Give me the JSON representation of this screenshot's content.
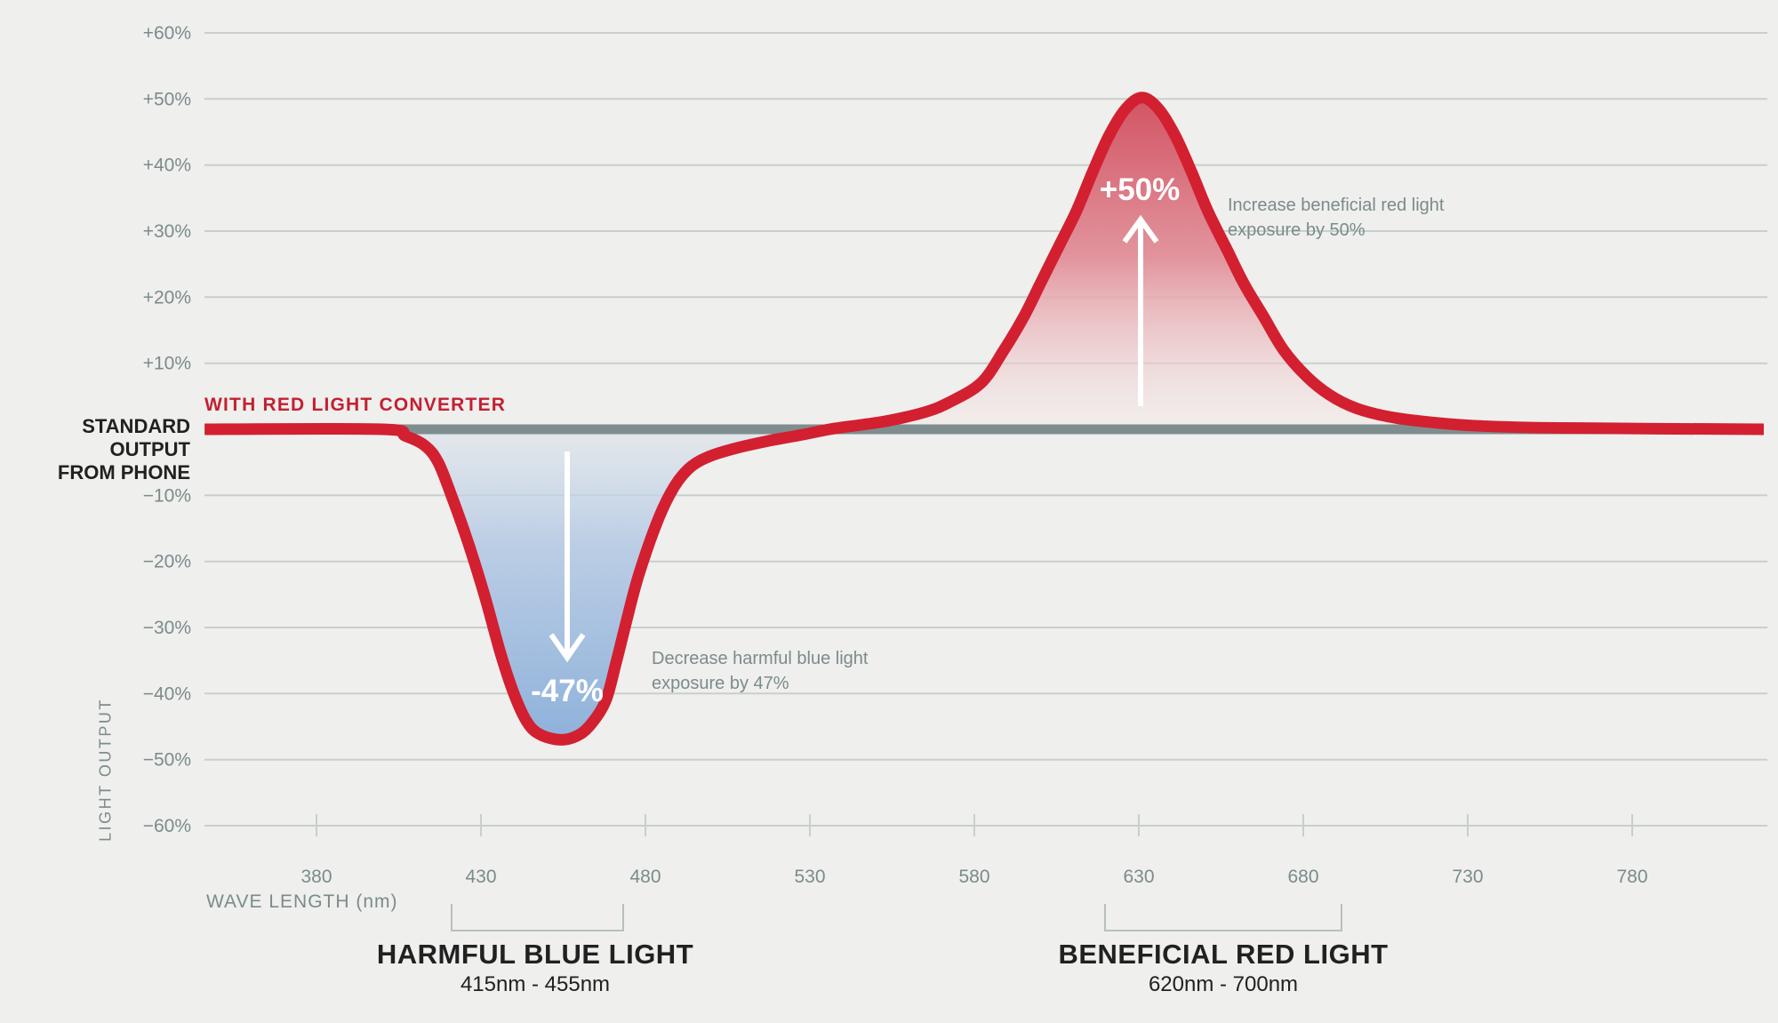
{
  "chart_data": {
    "type": "line",
    "title": "",
    "xlabel": "WAVE LENGTH (nm)",
    "ylabel": "LIGHT OUTPUT",
    "xlim_nm": [
      346,
      820
    ],
    "ylim_pct": [
      -60,
      60
    ],
    "grid": true,
    "x_ticks": [
      {
        "label": "380",
        "nm": 380
      },
      {
        "label": "430",
        "nm": 430
      },
      {
        "label": "480",
        "nm": 480
      },
      {
        "label": "530",
        "nm": 530
      },
      {
        "label": "580",
        "nm": 580
      },
      {
        "label": "630",
        "nm": 630
      },
      {
        "label": "680",
        "nm": 680
      },
      {
        "label": "730",
        "nm": 730
      },
      {
        "label": "780",
        "nm": 780
      }
    ],
    "y_ticks": [
      {
        "label": "+60%",
        "pct": 60
      },
      {
        "label": "+50%",
        "pct": 50
      },
      {
        "label": "+40%",
        "pct": 40
      },
      {
        "label": "+30%",
        "pct": 30
      },
      {
        "label": "+20%",
        "pct": 20
      },
      {
        "label": "+10%",
        "pct": 10
      },
      {
        "label": "−10%",
        "pct": -10
      },
      {
        "label": "−20%",
        "pct": -20
      },
      {
        "label": "−30%",
        "pct": -30
      },
      {
        "label": "−40%",
        "pct": -40
      },
      {
        "label": "−50%",
        "pct": -50
      },
      {
        "label": "−60%",
        "pct": -60
      }
    ],
    "baseline": {
      "label_line1": "STANDARD OUTPUT",
      "label_line2": "FROM PHONE",
      "value_pct": 0
    },
    "series": [
      {
        "name": "STANDARD OUTPUT FROM PHONE",
        "color": "#7e8e8e",
        "points_nm_pct": [
          [
            346,
            0
          ],
          [
            820,
            0
          ]
        ]
      },
      {
        "name": "WITH RED LIGHT CONVERTER",
        "color": "#d22031",
        "points_nm_pct": [
          [
            346,
            0
          ],
          [
            400,
            0
          ],
          [
            407,
            -1
          ],
          [
            413,
            -2.5
          ],
          [
            417,
            -5
          ],
          [
            421,
            -10
          ],
          [
            426,
            -17
          ],
          [
            431,
            -25
          ],
          [
            436,
            -34
          ],
          [
            440,
            -40
          ],
          [
            444,
            -44.3
          ],
          [
            448,
            -46.2
          ],
          [
            454.5,
            -47
          ],
          [
            460,
            -46.2
          ],
          [
            464,
            -44.3
          ],
          [
            468,
            -41
          ],
          [
            471,
            -35.5
          ],
          [
            474,
            -29.5
          ],
          [
            478,
            -22
          ],
          [
            484,
            -13.5
          ],
          [
            489,
            -8.5
          ],
          [
            494,
            -5.6
          ],
          [
            500,
            -4
          ],
          [
            508,
            -2.8
          ],
          [
            518,
            -1.7
          ],
          [
            528,
            -0.8
          ],
          [
            536,
            0
          ],
          [
            546,
            0.7
          ],
          [
            554,
            1.3
          ],
          [
            565,
            2.6
          ],
          [
            572,
            4
          ],
          [
            582,
            7
          ],
          [
            589,
            12
          ],
          [
            595,
            17
          ],
          [
            600,
            22
          ],
          [
            606,
            28
          ],
          [
            611,
            33
          ],
          [
            616,
            39
          ],
          [
            621,
            44.5
          ],
          [
            626,
            48.5
          ],
          [
            631,
            50.2
          ],
          [
            636,
            48.5
          ],
          [
            641,
            44.5
          ],
          [
            646,
            39
          ],
          [
            651,
            33
          ],
          [
            657,
            27
          ],
          [
            662,
            22
          ],
          [
            668,
            17
          ],
          [
            674,
            12
          ],
          [
            681,
            8
          ],
          [
            688,
            5.2
          ],
          [
            696,
            3.2
          ],
          [
            706,
            1.9
          ],
          [
            718,
            1.1
          ],
          [
            734,
            0.5
          ],
          [
            758,
            0.2
          ],
          [
            820,
            0
          ]
        ]
      }
    ],
    "dip": {
      "value_label": "-47%",
      "note_line1": "Decrease harmful blue light",
      "note_line2": "exposure by 47%",
      "center_nm": 454.5,
      "min_pct": -47
    },
    "peak": {
      "value_label": "+50%",
      "note_line1": "Increase beneficial red light",
      "note_line2": "exposure by 50%",
      "center_nm": 631,
      "max_pct": 50
    },
    "footer": {
      "blue": {
        "title": "HARMFUL BLUE LIGHT",
        "range": "415nm - 455nm"
      },
      "red": {
        "title": "BENEFICIAL RED LIGHT",
        "range": "620nm - 700nm"
      }
    },
    "colors": {
      "background": "#efefed",
      "grid": "#c8cfce",
      "baseline_gray": "#7e8e8e",
      "curve_red": "#d22031",
      "converter_label_red": "#c32031",
      "text_gray": "#7b8b8b",
      "text_dark": "#212121",
      "bracket": "#b7c0bf",
      "blue_fill_deep": "#8cb0da",
      "blue_fill_light": "#e3eaf2",
      "red_fill_deep": "#d15060",
      "red_fill_light": "#f6e9e8",
      "arrow_white": "#ffffff"
    }
  }
}
